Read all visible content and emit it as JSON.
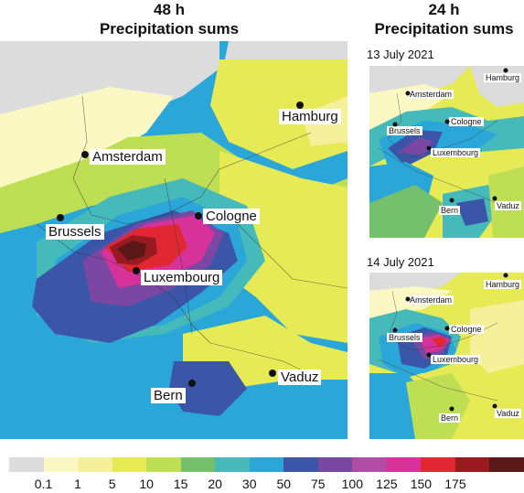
{
  "main": {
    "title_line1": "48 h",
    "title_line2": "Precipitation sums",
    "cities": [
      "Hamburg",
      "Amsterdam",
      "Cologne",
      "Brussels",
      "Luxembourg",
      "Bern",
      "Vaduz"
    ]
  },
  "right": {
    "title_line1": "24 h",
    "title_line2": "Precipitation sums",
    "panel_top": {
      "date": "13 July 2021",
      "cities": [
        "Hamburg",
        "Amsterdam",
        "Cologne",
        "Brussels",
        "Luxembourg",
        "Bern",
        "Vaduz"
      ]
    },
    "panel_bottom": {
      "date": "14 July 2021",
      "cities": [
        "Hamburg",
        "Amsterdam",
        "Cologne",
        "Brussels",
        "Luxembourg",
        "Bern",
        "Vaduz"
      ]
    }
  },
  "legend": {
    "colors": [
      "#dcdcdc",
      "#fbf8c4",
      "#f4f19a",
      "#e6ea55",
      "#bede53",
      "#74c06c",
      "#46b9ba",
      "#2aa7d8",
      "#3b56a8",
      "#7a48a2",
      "#b04ca6",
      "#d7319a",
      "#e12832",
      "#9a1a22",
      "#5a1717"
    ],
    "ticks": [
      "0.1",
      "1",
      "5",
      "10",
      "15",
      "20",
      "30",
      "50",
      "75",
      "100",
      "125",
      "150",
      "175"
    ]
  }
}
